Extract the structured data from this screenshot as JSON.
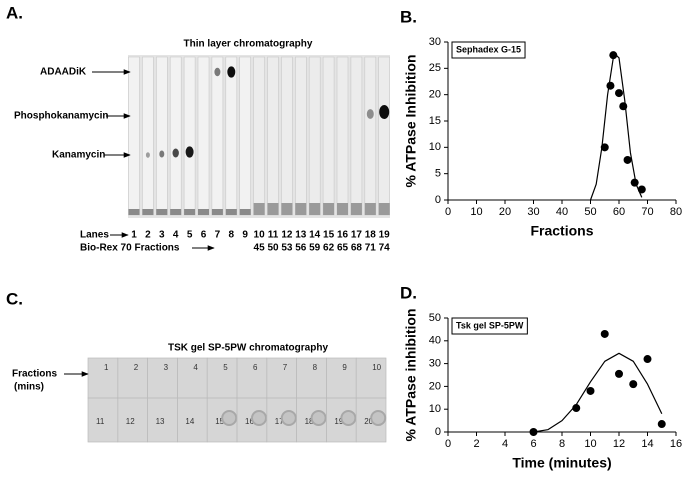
{
  "panel_a": {
    "label": "A.",
    "title": "Thin layer chromatography",
    "markers": [
      "ADAADiK",
      "Phosphokanamycin",
      "Kanamycin"
    ],
    "lanes_label": "Lanes",
    "lanes": [
      "1",
      "2",
      "3",
      "4",
      "5",
      "6",
      "7",
      "8",
      "9",
      "10",
      "11",
      "12",
      "13",
      "14",
      "15",
      "16",
      "17",
      "18",
      "19"
    ],
    "fractions_label": "Bio-Rex 70 Fractions",
    "fractions": [
      "45",
      "50",
      "53",
      "56",
      "59",
      "62",
      "65",
      "68",
      "71",
      "74"
    ]
  },
  "panel_c": {
    "label": "C.",
    "title": "TSK gel SP-5PW chromatography",
    "row_label": [
      "Fractions",
      "(mins)"
    ],
    "wells": [
      "1",
      "2",
      "3",
      "4",
      "5",
      "6",
      "7",
      "8",
      "9",
      "10",
      "11",
      "12",
      "13",
      "14",
      "15",
      "16",
      "17",
      "18",
      "19",
      "20"
    ]
  },
  "chart_data": [
    {
      "type": "scatter",
      "panel_label": "B.",
      "legend_title": "Sephadex G-15",
      "x_label": "Fractions",
      "y_label": "% ATPase Inhibition",
      "x": [
        55,
        57,
        58,
        60,
        61.5,
        63,
        65.5,
        68
      ],
      "values": [
        10,
        21.7,
        27.5,
        20.3,
        17.8,
        7.6,
        3.3,
        2
      ],
      "fit_x": [
        50,
        52,
        54,
        56,
        58,
        59,
        60,
        62,
        64,
        66,
        68
      ],
      "fit_values": [
        0,
        3,
        10,
        20,
        27,
        27.5,
        27,
        19,
        9,
        3,
        0.5
      ],
      "color": "#000000",
      "xlim": [
        0,
        80
      ],
      "xticks": [
        0,
        10,
        20,
        30,
        40,
        50,
        60,
        70,
        80
      ],
      "ylim": [
        0,
        30
      ],
      "yticks": [
        0,
        5,
        10,
        15,
        20,
        25,
        30
      ]
    },
    {
      "type": "scatter",
      "panel_label": "D.",
      "legend_title": "Tsk gel SP-5PW",
      "x_label": "Time (minutes)",
      "y_label": "% ATPase inhibition",
      "x": [
        6,
        9,
        10,
        11,
        12,
        13,
        14,
        15
      ],
      "values": [
        0,
        10.5,
        18,
        43,
        25.5,
        21,
        32,
        3.5
      ],
      "fit_x": [
        6,
        7,
        8,
        9,
        10,
        11,
        12,
        13,
        14,
        15
      ],
      "fit_values": [
        0,
        1,
        5,
        12,
        22,
        31,
        34.5,
        31,
        21,
        8
      ],
      "color": "#000000",
      "xlim": [
        0,
        16
      ],
      "xticks": [
        0,
        2,
        4,
        6,
        8,
        10,
        12,
        14,
        16
      ],
      "ylim": [
        0,
        50
      ],
      "yticks": [
        0,
        10,
        20,
        30,
        40,
        50
      ]
    }
  ]
}
